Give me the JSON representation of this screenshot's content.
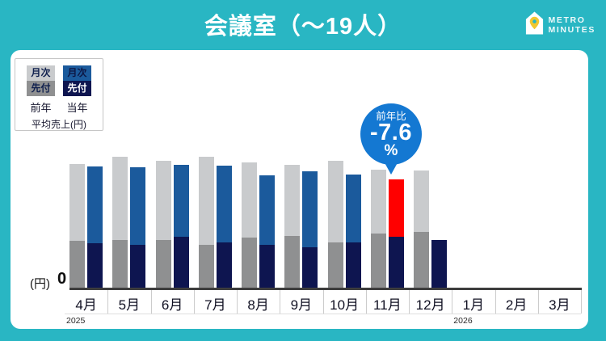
{
  "page": {
    "bg_color": "#29b6c3"
  },
  "header": {
    "title": "会議室（～19人）",
    "logo": {
      "icon": "house-pin-icon",
      "line1": "METRO",
      "line2": "MINUTES"
    }
  },
  "legend": {
    "columns": [
      {
        "year_label": "前年",
        "items": [
          {
            "label": "月次",
            "color": "#c9cbcd",
            "text_color": "#10204e"
          },
          {
            "label": "先付",
            "color": "#8f9091",
            "text_color": "#10204e"
          }
        ]
      },
      {
        "year_label": "当年",
        "items": [
          {
            "label": "月次",
            "color": "#1b5a9c",
            "text_color": "#0d1745"
          },
          {
            "label": "先付",
            "color": "#0e1550",
            "text_color": "#ffffff"
          }
        ]
      }
    ],
    "caption": "平均売上(円)"
  },
  "callout": {
    "line1": "前年比",
    "value": "-7.6",
    "unit": "%",
    "color": "#1478d2",
    "target_category": "11月"
  },
  "axis": {
    "y_unit_label": "(円)",
    "y_zero_label": "0"
  },
  "chart_data": {
    "type": "bar",
    "title": "会議室（～19人） 平均売上(円)",
    "categories": [
      "4月",
      "5月",
      "6月",
      "7月",
      "8月",
      "9月",
      "10月",
      "11月",
      "12月",
      "1月",
      "2月",
      "3月"
    ],
    "x_years": [
      {
        "label": "2025",
        "start_category": "4月"
      },
      {
        "label": "2026",
        "start_category": "1月"
      }
    ],
    "ylabel": "(円)",
    "y_ticks": [
      "0"
    ],
    "ylim": [
      0,
      170
    ],
    "grid": false,
    "legend_position": "top-left",
    "note": "y-axis shows only 0; values are relative heights (px units read from chart)",
    "series": [
      {
        "name": "前年 先付",
        "stack": "prev",
        "color": "#8f9091",
        "values": [
          60,
          61,
          61,
          55,
          64,
          66,
          58,
          69,
          71,
          null,
          null,
          null
        ]
      },
      {
        "name": "前年 月次",
        "stack": "prev",
        "color": "#c9cbcd",
        "values": [
          95,
          103,
          98,
          109,
          93,
          88,
          101,
          79,
          76,
          null,
          null,
          null
        ]
      },
      {
        "name": "当年 先付",
        "stack": "curr",
        "color": "#0e1550",
        "values": [
          57,
          55,
          65,
          58,
          55,
          52,
          58,
          65,
          61,
          null,
          null,
          null
        ]
      },
      {
        "name": "当年 月次",
        "stack": "curr",
        "color": "#1b5a9c",
        "values": [
          95,
          96,
          89,
          95,
          86,
          94,
          84,
          71,
          0,
          null,
          null,
          null
        ]
      }
    ],
    "highlight": {
      "category": "11月",
      "series": "当年 月次",
      "color": "#ff0000",
      "annotation": "前年比 -7.6%"
    }
  }
}
